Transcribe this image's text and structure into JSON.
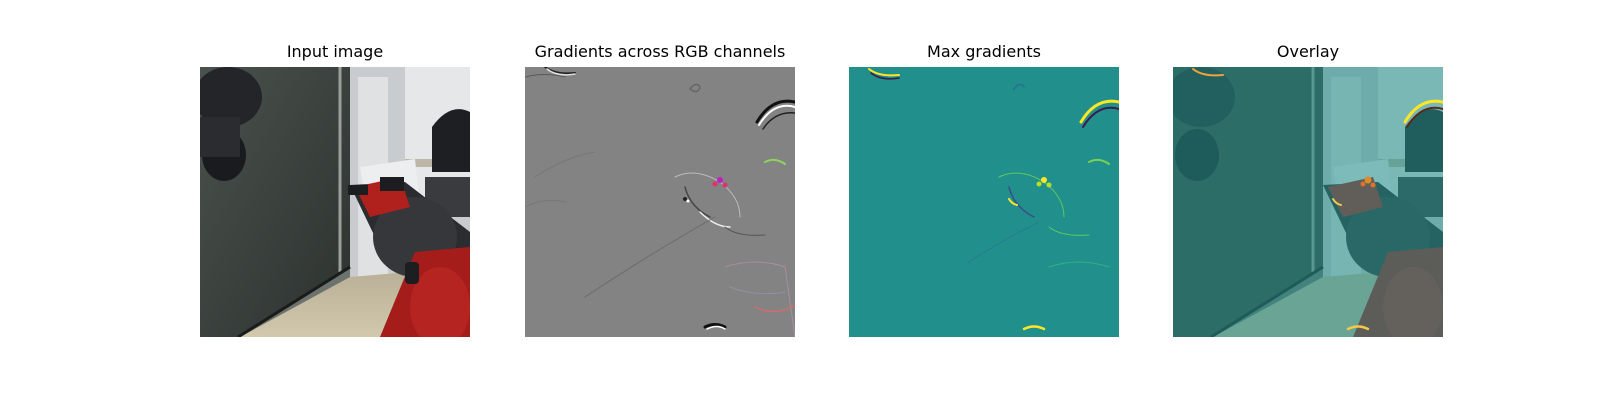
{
  "figure": {
    "panels": [
      {
        "id": "input-image",
        "title": "Input image"
      },
      {
        "id": "gradients-rgb",
        "title": "Gradients across RGB channels"
      },
      {
        "id": "max-gradients",
        "title": "Max gradients"
      },
      {
        "id": "overlay",
        "title": "Overlay"
      }
    ]
  },
  "colors": {
    "background": "#ffffff",
    "gradient_gray": "#808080",
    "viridis_teal": "#21918c",
    "viridis_yellow": "#fde725",
    "robot_red": "#b0201c",
    "robot_dark": "#2a2c30"
  }
}
